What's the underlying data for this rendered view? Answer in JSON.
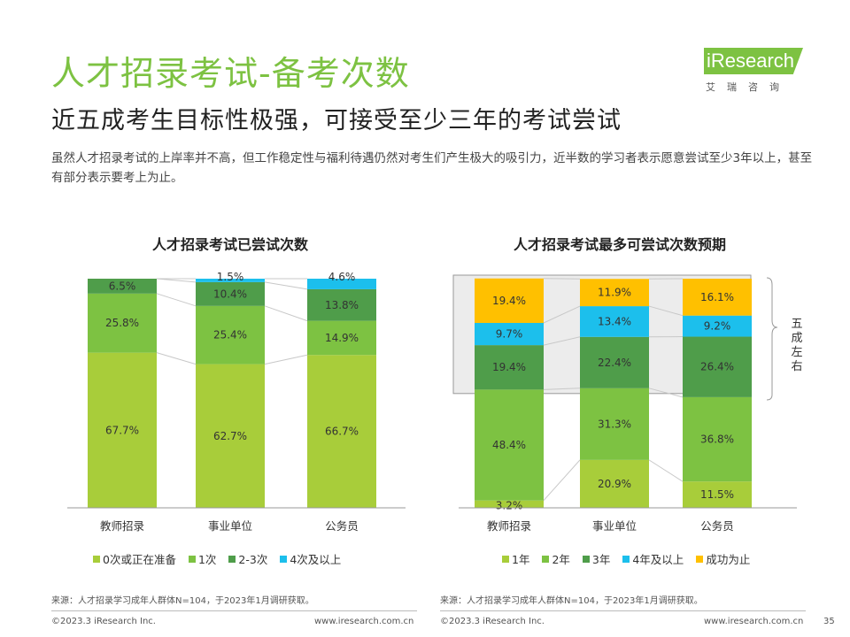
{
  "header": {
    "title": "人才招录考试-备考次数",
    "subtitle": "近五成考生目标性极强，可接受至少三年的考试尝试",
    "description": "虽然人才招录考试的上岸率并不高，但工作稳定性与福利待遇仍然对考生们产生极大的吸引力，近半数的学习者表示愿意尝试至少3年以上，甚至有部分表示要考上为止。"
  },
  "logo": {
    "name": "iResearch",
    "sub": "艾瑞咨询"
  },
  "chart_data": [
    {
      "type": "bar",
      "stacked": true,
      "title": "人才招录考试已尝试次数",
      "categories": [
        "教师招录",
        "事业单位",
        "公务员"
      ],
      "ylim": [
        0,
        100
      ],
      "series": [
        {
          "name": "0次或正在准备",
          "color": "#a8cd3a",
          "values": [
            67.7,
            62.7,
            66.7
          ],
          "labels": [
            "67.7%",
            "62.7%",
            "66.7%"
          ]
        },
        {
          "name": "1次",
          "color": "#7dc242",
          "values": [
            25.8,
            25.4,
            14.9
          ],
          "labels": [
            "25.8%",
            "25.4%",
            "14.9%"
          ]
        },
        {
          "name": "2-3次",
          "color": "#4f9d4a",
          "values": [
            6.5,
            10.4,
            13.8
          ],
          "labels": [
            "6.5%",
            "10.4%",
            "13.8%"
          ]
        },
        {
          "name": "4次及以上",
          "color": "#1cbfec",
          "values": [
            0,
            1.5,
            4.6
          ],
          "labels": [
            "",
            "1.5%",
            "4.6%"
          ]
        }
      ],
      "source": "来源：人才招录学习成年人群体N=104，于2023年1月调研获取。"
    },
    {
      "type": "bar",
      "stacked": true,
      "title": "人才招录考试最多可尝试次数预期",
      "categories": [
        "教师招录",
        "事业单位",
        "公务员"
      ],
      "ylim": [
        0,
        100
      ],
      "series": [
        {
          "name": "1年",
          "color": "#a8cd3a",
          "values": [
            3.2,
            20.9,
            11.5
          ],
          "labels": [
            "3.2%",
            "20.9%",
            "11.5%"
          ]
        },
        {
          "name": "2年",
          "color": "#7dc242",
          "values": [
            48.4,
            31.3,
            36.8
          ],
          "labels": [
            "48.4%",
            "31.3%",
            "36.8%"
          ]
        },
        {
          "name": "3年",
          "color": "#4f9d4a",
          "values": [
            19.4,
            22.4,
            26.4
          ],
          "labels": [
            "19.4%",
            "22.4%",
            "26.4%"
          ]
        },
        {
          "name": "4年及以上",
          "color": "#1cbfec",
          "values": [
            9.7,
            13.4,
            9.2
          ],
          "labels": [
            "9.7%",
            "13.4%",
            "9.2%"
          ]
        },
        {
          "name": "成功为止",
          "color": "#ffc000",
          "values": [
            19.4,
            11.9,
            16.1
          ],
          "labels": [
            "19.4%",
            "11.9%",
            "16.1%"
          ]
        }
      ],
      "annotation": "五成左右",
      "source": "来源：人才招录学习成年人群体N=104，于2023年1月调研获取。"
    }
  ],
  "footer": {
    "copyright": "©2023.3 iResearch Inc.",
    "website": "www.iresearch.com.cn",
    "page": "35"
  }
}
